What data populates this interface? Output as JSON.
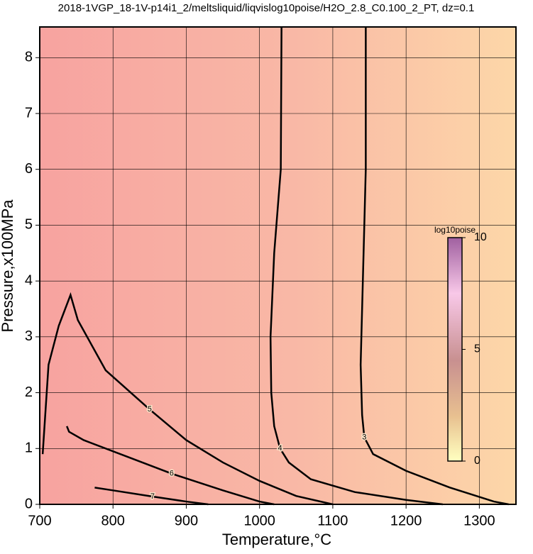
{
  "chart_data": {
    "type": "contour",
    "title": "2018-1VGP_18-1V-p14i1_2/meltsliquid/liqvislog10poise/H2O_2.8_C0.100_2_PT, dz=0.1",
    "x_label": "Temperature,°C",
    "y_label": "Pressure,x100MPa",
    "xlim": [
      700,
      1350
    ],
    "ylim": [
      0,
      8.55
    ],
    "xticks": [
      700,
      800,
      900,
      1000,
      1100,
      1200,
      1300
    ],
    "yticks": [
      0,
      1,
      2,
      3,
      4,
      5,
      6,
      7,
      8
    ],
    "grid": true,
    "colorbar": {
      "label": "log10poise",
      "lim": [
        0,
        10
      ],
      "ticks": [
        0,
        5,
        10
      ]
    },
    "contours": [
      {
        "level": 3,
        "x": [
          1145,
          1145,
          1141,
          1138,
          1140,
          1143,
          1155,
          1200,
          1260,
          1320,
          1340
        ],
        "y": [
          8.55,
          6,
          4,
          2.5,
          1.6,
          1.2,
          0.9,
          0.6,
          0.3,
          0.05,
          0
        ]
      },
      {
        "level": 4,
        "x": [
          1030,
          1029,
          1020,
          1015,
          1016,
          1020,
          1028,
          1040,
          1070,
          1130,
          1200,
          1250
        ],
        "y": [
          8.55,
          6,
          4.5,
          3,
          2,
          1.4,
          1.0,
          0.75,
          0.45,
          0.22,
          0.08,
          0
        ]
      },
      {
        "level": 5,
        "x": [
          704,
          712,
          726,
          742,
          752,
          790,
          850,
          900,
          950,
          1000,
          1050,
          1100
        ],
        "y": [
          0.9,
          2.5,
          3.2,
          3.75,
          3.3,
          2.4,
          1.7,
          1.15,
          0.75,
          0.42,
          0.15,
          0
        ]
      },
      {
        "level": 6,
        "x": [
          737,
          740,
          760,
          820,
          880,
          950,
          1000,
          1020
        ],
        "y": [
          1.4,
          1.3,
          1.15,
          0.85,
          0.55,
          0.25,
          0.05,
          0
        ]
      },
      {
        "level": 7,
        "x": [
          775,
          800,
          854,
          900,
          930
        ],
        "y": [
          0.3,
          0.25,
          0.14,
          0.05,
          0
        ]
      }
    ]
  }
}
